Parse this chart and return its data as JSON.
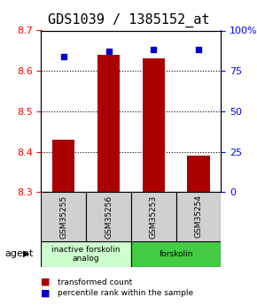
{
  "title": "GDS1039 / 1385152_at",
  "samples": [
    "GSM35255",
    "GSM35256",
    "GSM35253",
    "GSM35254"
  ],
  "bar_values": [
    8.43,
    8.64,
    8.63,
    8.39
  ],
  "percentile_values": [
    84,
    87,
    88,
    88
  ],
  "y_min": 8.3,
  "y_max": 8.7,
  "y_ticks": [
    8.3,
    8.4,
    8.5,
    8.6,
    8.7
  ],
  "right_y_ticks": [
    0,
    25,
    50,
    75,
    100
  ],
  "right_y_labels": [
    "0",
    "25",
    "50",
    "75",
    "100%"
  ],
  "bar_color": "#aa0000",
  "dot_color": "#0000cc",
  "bar_width": 0.5,
  "groups": [
    {
      "label": "inactive forskolin\nanalog",
      "span": [
        0.5,
        2.5
      ],
      "color": "#ccffcc"
    },
    {
      "label": "forskolin",
      "span": [
        2.5,
        4.5
      ],
      "color": "#44cc44"
    }
  ],
  "agent_label": "agent",
  "legend_bar_label": "transformed count",
  "legend_dot_label": "percentile rank within the sample",
  "title_fontsize": 11,
  "tick_fontsize": 8
}
